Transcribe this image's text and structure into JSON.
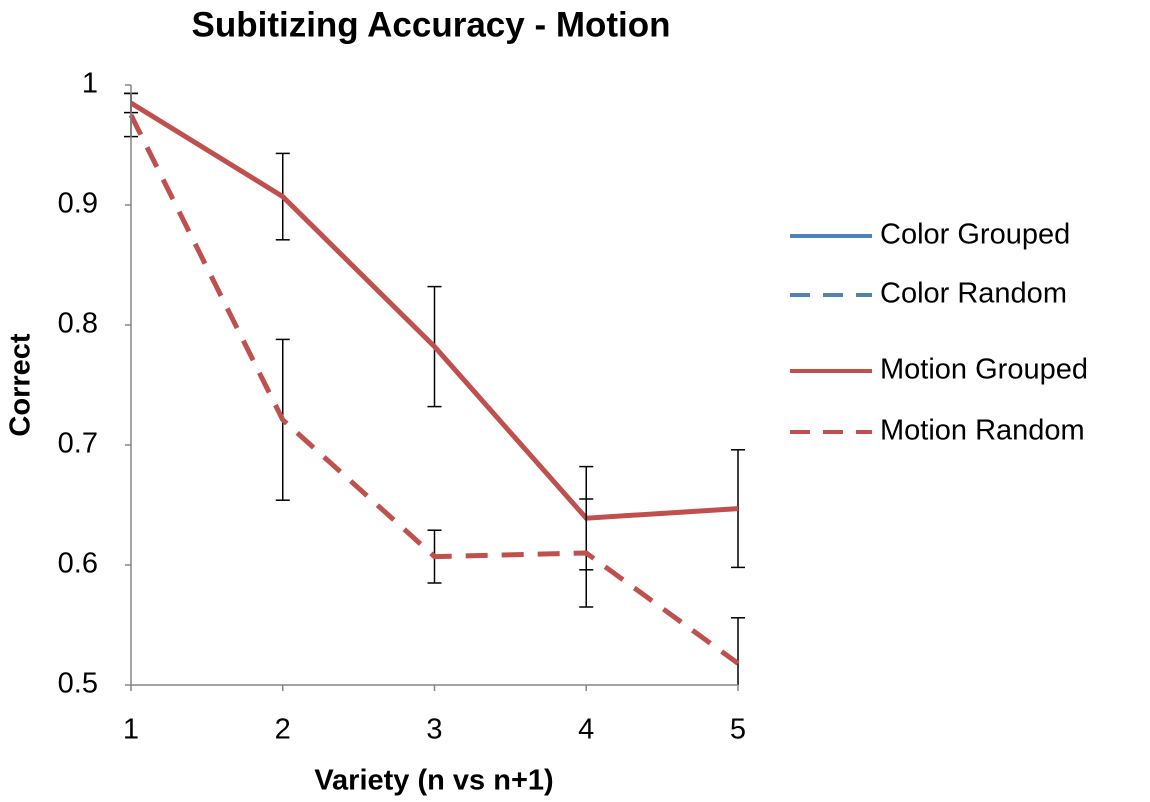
{
  "chart_data": {
    "type": "line",
    "title": "Subitizing Accuracy - Motion",
    "xlabel": "Variety (n vs n+1)",
    "ylabel": "Correct",
    "x": [
      1,
      2,
      3,
      4,
      5
    ],
    "xlim": [
      1,
      5
    ],
    "xticks": [
      1,
      2,
      3,
      4,
      5
    ],
    "ylim": [
      0.5,
      1
    ],
    "yticks": [
      0.5,
      0.6,
      0.7,
      0.8,
      0.9,
      1
    ],
    "legend": "right",
    "series": [
      {
        "name": "Color Grouped",
        "color": "#4f81bd",
        "dash": false,
        "values": [
          null,
          null,
          null,
          null,
          null
        ],
        "errors": [
          null,
          null,
          null,
          null,
          null
        ]
      },
      {
        "name": "Color Random",
        "color": "#4f81bd",
        "dash": true,
        "values": [
          null,
          null,
          null,
          null,
          null
        ],
        "errors": [
          null,
          null,
          null,
          null,
          null
        ]
      },
      {
        "name": "Motion Grouped",
        "color": "#c0504d",
        "dash": false,
        "values": [
          0.985,
          0.907,
          0.782,
          0.639,
          0.647
        ],
        "errors": [
          0.008,
          0.036,
          0.05,
          0.043,
          0.049
        ]
      },
      {
        "name": "Motion Random",
        "color": "#c0504d",
        "dash": true,
        "values": [
          0.975,
          0.721,
          0.607,
          0.61,
          0.518
        ],
        "errors": [
          0.018,
          0.067,
          0.022,
          0.045,
          0.038
        ]
      }
    ]
  }
}
